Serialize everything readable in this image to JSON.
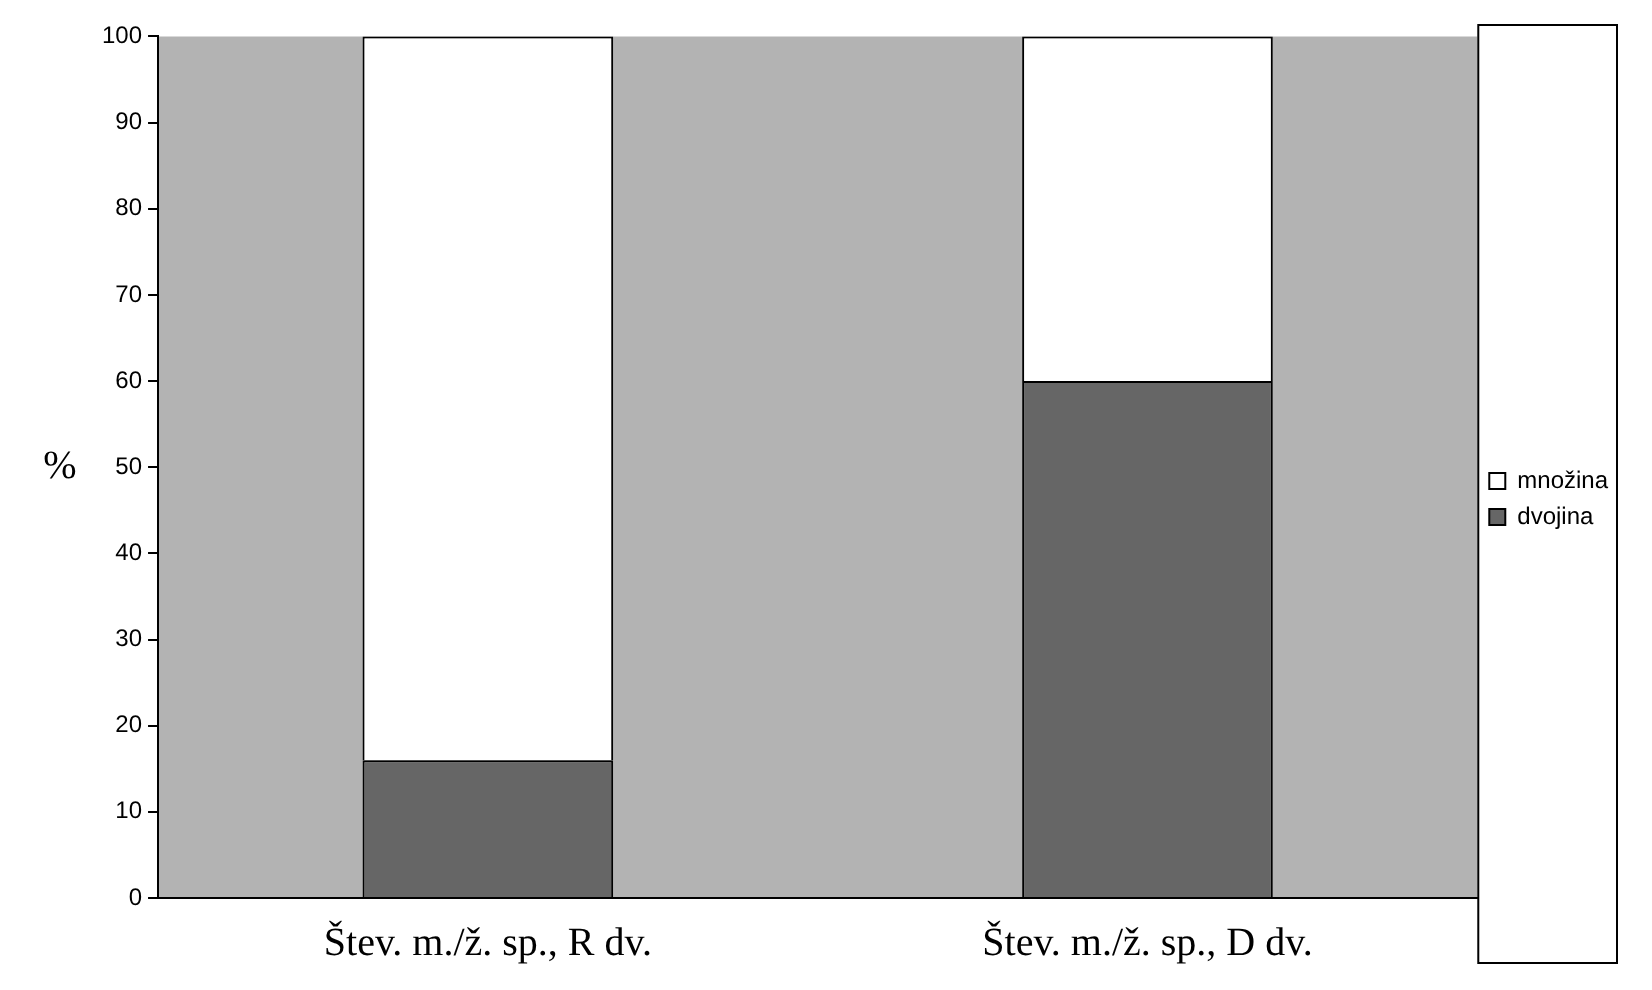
{
  "chart_data": {
    "type": "bar",
    "ylabel": "%",
    "categories": [
      "Štev. m./ž. sp., R dv.",
      "Štev. m./ž. sp., D dv."
    ],
    "series": [
      {
        "name": "dvojina",
        "color": "#666666",
        "values": [
          16,
          60
        ]
      },
      {
        "name": "množina",
        "color": "#ffffff",
        "values": [
          84,
          40
        ]
      }
    ],
    "stacked": true,
    "ylim": [
      0,
      100
    ],
    "yticks": [
      0,
      10,
      20,
      30,
      40,
      50,
      60,
      70,
      80,
      90,
      100
    ],
    "grid": false,
    "legend": "right"
  }
}
